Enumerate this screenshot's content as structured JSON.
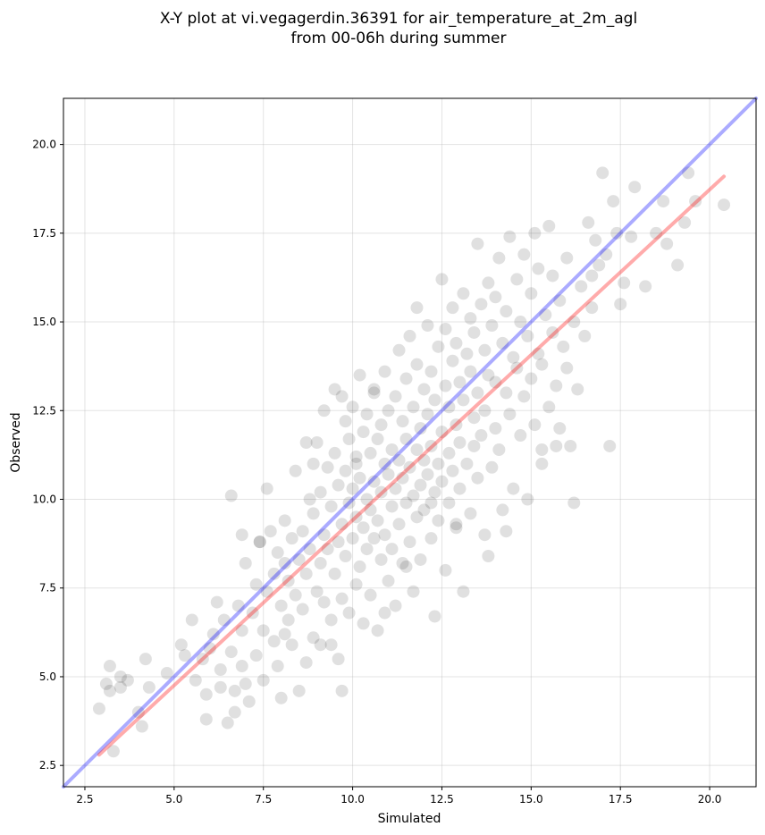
{
  "chart_data": {
    "type": "scatter",
    "title_line1": "X-Y plot at vi.vegagerdin.36391 for air_temperature_at_2m_agl",
    "title_line2": "from 00-06h during summer",
    "xlabel": "Simulated",
    "ylabel": "Observed",
    "xlim": [
      1.9,
      21.3
    ],
    "ylim": [
      1.9,
      21.3
    ],
    "xticks": [
      2.5,
      5.0,
      7.5,
      10.0,
      12.5,
      15.0,
      17.5,
      20.0
    ],
    "yticks": [
      2.5,
      5.0,
      7.5,
      10.0,
      12.5,
      15.0,
      17.5,
      20.0
    ],
    "xtick_labels": [
      "2.5",
      "5.0",
      "7.5",
      "10.0",
      "12.5",
      "15.0",
      "17.5",
      "20.0"
    ],
    "ytick_labels": [
      "2.5",
      "5.0",
      "7.5",
      "10.0",
      "12.5",
      "15.0",
      "17.5",
      "20.0"
    ],
    "grid": true,
    "point_color": "#000000",
    "point_alpha": 0.12,
    "identity_line": {
      "color": "#0000ff",
      "alpha": 0.33,
      "x": [
        1.9,
        21.3
      ],
      "y": [
        1.9,
        21.3
      ]
    },
    "fit_line": {
      "color": "#ff0000",
      "alpha": 0.33,
      "x": [
        2.9,
        20.4
      ],
      "y": [
        2.8,
        19.1
      ]
    },
    "points": [
      [
        2.9,
        4.1
      ],
      [
        3.1,
        4.8
      ],
      [
        3.2,
        5.3
      ],
      [
        3.2,
        4.6
      ],
      [
        3.3,
        2.9
      ],
      [
        3.5,
        4.7
      ],
      [
        3.5,
        5.0
      ],
      [
        3.7,
        4.9
      ],
      [
        4.0,
        4.0
      ],
      [
        4.1,
        3.6
      ],
      [
        4.2,
        5.5
      ],
      [
        4.3,
        4.7
      ],
      [
        4.8,
        5.1
      ],
      [
        5.2,
        5.9
      ],
      [
        5.3,
        5.6
      ],
      [
        5.5,
        6.6
      ],
      [
        5.6,
        4.9
      ],
      [
        5.8,
        5.5
      ],
      [
        5.9,
        4.5
      ],
      [
        5.9,
        3.8
      ],
      [
        6.0,
        5.8
      ],
      [
        6.1,
        6.2
      ],
      [
        6.2,
        7.1
      ],
      [
        6.3,
        5.2
      ],
      [
        6.3,
        4.7
      ],
      [
        6.4,
        6.6
      ],
      [
        6.5,
        3.7
      ],
      [
        6.6,
        5.7
      ],
      [
        6.7,
        4.0
      ],
      [
        6.7,
        4.6
      ],
      [
        6.8,
        7.0
      ],
      [
        6.9,
        5.3
      ],
      [
        6.9,
        6.3
      ],
      [
        7.0,
        8.2
      ],
      [
        7.0,
        4.8
      ],
      [
        7.1,
        4.3
      ],
      [
        7.2,
        6.8
      ],
      [
        7.3,
        7.6
      ],
      [
        7.3,
        5.6
      ],
      [
        7.4,
        8.8
      ],
      [
        7.5,
        6.3
      ],
      [
        7.5,
        4.9
      ],
      [
        7.6,
        7.4
      ],
      [
        7.6,
        10.3
      ],
      [
        7.7,
        9.1
      ],
      [
        7.8,
        6.0
      ],
      [
        7.8,
        7.9
      ],
      [
        7.9,
        5.3
      ],
      [
        7.9,
        8.5
      ],
      [
        8.0,
        4.4
      ],
      [
        8.0,
        7.0
      ],
      [
        8.1,
        8.2
      ],
      [
        8.1,
        9.4
      ],
      [
        8.2,
        6.6
      ],
      [
        8.2,
        7.7
      ],
      [
        8.3,
        5.9
      ],
      [
        8.3,
        8.9
      ],
      [
        8.4,
        10.8
      ],
      [
        8.4,
        7.3
      ],
      [
        8.5,
        8.3
      ],
      [
        8.5,
        4.6
      ],
      [
        8.6,
        6.9
      ],
      [
        8.6,
        9.1
      ],
      [
        8.7,
        7.9
      ],
      [
        8.7,
        5.4
      ],
      [
        8.8,
        8.6
      ],
      [
        8.8,
        10.0
      ],
      [
        8.9,
        6.1
      ],
      [
        8.9,
        9.6
      ],
      [
        9.0,
        7.4
      ],
      [
        9.0,
        11.6
      ],
      [
        9.1,
        8.2
      ],
      [
        9.1,
        10.2
      ],
      [
        9.1,
        5.9
      ],
      [
        9.2,
        9.0
      ],
      [
        9.2,
        7.1
      ],
      [
        9.3,
        10.9
      ],
      [
        9.3,
        8.6
      ],
      [
        9.4,
        6.6
      ],
      [
        9.4,
        9.8
      ],
      [
        9.5,
        13.1
      ],
      [
        9.5,
        7.9
      ],
      [
        9.5,
        11.3
      ],
      [
        9.6,
        8.8
      ],
      [
        9.6,
        5.5
      ],
      [
        9.6,
        10.4
      ],
      [
        9.7,
        9.3
      ],
      [
        9.7,
        7.2
      ],
      [
        9.7,
        4.6
      ],
      [
        9.8,
        12.2
      ],
      [
        9.8,
        10.8
      ],
      [
        9.8,
        8.4
      ],
      [
        9.9,
        9.9
      ],
      [
        9.9,
        6.8
      ],
      [
        9.9,
        11.7
      ],
      [
        10.0,
        10.3
      ],
      [
        10.0,
        8.9
      ],
      [
        10.0,
        12.6
      ],
      [
        10.1,
        7.6
      ],
      [
        10.1,
        9.5
      ],
      [
        10.1,
        11.0
      ],
      [
        10.2,
        13.5
      ],
      [
        10.2,
        8.1
      ],
      [
        10.2,
        10.6
      ],
      [
        10.3,
        9.2
      ],
      [
        10.3,
        6.5
      ],
      [
        10.3,
        11.9
      ],
      [
        10.4,
        10.0
      ],
      [
        10.4,
        8.6
      ],
      [
        10.4,
        12.4
      ],
      [
        10.5,
        9.7
      ],
      [
        10.5,
        11.3
      ],
      [
        10.5,
        7.3
      ],
      [
        10.6,
        10.5
      ],
      [
        10.6,
        8.9
      ],
      [
        10.6,
        13.0
      ],
      [
        10.7,
        9.4
      ],
      [
        10.7,
        11.7
      ],
      [
        10.7,
        6.3
      ],
      [
        10.8,
        10.2
      ],
      [
        10.8,
        12.1
      ],
      [
        10.8,
        8.3
      ],
      [
        10.9,
        11.0
      ],
      [
        10.9,
        9.0
      ],
      [
        10.9,
        13.6
      ],
      [
        11.0,
        10.7
      ],
      [
        11.0,
        7.7
      ],
      [
        11.0,
        12.5
      ],
      [
        11.1,
        9.8
      ],
      [
        11.1,
        11.4
      ],
      [
        11.1,
        8.6
      ],
      [
        11.2,
        10.3
      ],
      [
        11.2,
        12.9
      ],
      [
        11.2,
        7.0
      ],
      [
        11.3,
        11.1
      ],
      [
        11.3,
        9.3
      ],
      [
        11.3,
        14.2
      ],
      [
        11.4,
        10.6
      ],
      [
        11.4,
        8.2
      ],
      [
        11.4,
        12.2
      ],
      [
        11.5,
        9.9
      ],
      [
        11.5,
        11.7
      ],
      [
        11.5,
        13.4
      ],
      [
        11.6,
        10.9
      ],
      [
        11.6,
        8.8
      ],
      [
        11.6,
        14.6
      ],
      [
        11.7,
        10.1
      ],
      [
        11.7,
        12.6
      ],
      [
        11.7,
        7.4
      ],
      [
        11.8,
        11.4
      ],
      [
        11.8,
        9.5
      ],
      [
        11.8,
        13.8
      ],
      [
        11.9,
        10.4
      ],
      [
        11.9,
        12.0
      ],
      [
        11.9,
        8.3
      ],
      [
        12.0,
        11.1
      ],
      [
        12.0,
        13.1
      ],
      [
        12.0,
        9.7
      ],
      [
        12.1,
        14.9
      ],
      [
        12.1,
        10.7
      ],
      [
        12.1,
        12.4
      ],
      [
        12.2,
        8.9
      ],
      [
        12.2,
        11.5
      ],
      [
        12.2,
        13.6
      ],
      [
        12.3,
        10.2
      ],
      [
        12.3,
        6.7
      ],
      [
        12.3,
        12.8
      ],
      [
        12.4,
        11.0
      ],
      [
        12.4,
        14.3
      ],
      [
        12.4,
        9.4
      ],
      [
        12.5,
        16.2
      ],
      [
        12.5,
        11.9
      ],
      [
        12.5,
        10.5
      ],
      [
        12.6,
        13.2
      ],
      [
        12.6,
        8.0
      ],
      [
        12.6,
        14.8
      ],
      [
        12.7,
        11.3
      ],
      [
        12.7,
        9.9
      ],
      [
        12.7,
        12.6
      ],
      [
        12.8,
        13.9
      ],
      [
        12.8,
        10.8
      ],
      [
        12.8,
        15.4
      ],
      [
        12.9,
        12.1
      ],
      [
        12.9,
        9.2
      ],
      [
        12.9,
        14.4
      ],
      [
        13.0,
        11.6
      ],
      [
        13.0,
        13.3
      ],
      [
        13.0,
        10.3
      ],
      [
        13.1,
        7.4
      ],
      [
        13.1,
        15.8
      ],
      [
        13.1,
        12.8
      ],
      [
        13.2,
        14.1
      ],
      [
        13.2,
        11.0
      ],
      [
        13.3,
        13.6
      ],
      [
        13.3,
        9.6
      ],
      [
        13.3,
        15.1
      ],
      [
        13.4,
        12.3
      ],
      [
        13.4,
        14.7
      ],
      [
        13.5,
        10.6
      ],
      [
        13.5,
        13.0
      ],
      [
        13.5,
        17.2
      ],
      [
        13.6,
        15.5
      ],
      [
        13.6,
        11.8
      ],
      [
        13.7,
        14.2
      ],
      [
        13.7,
        9.0
      ],
      [
        13.7,
        12.5
      ],
      [
        13.8,
        16.1
      ],
      [
        13.8,
        13.5
      ],
      [
        13.9,
        10.9
      ],
      [
        13.9,
        14.9
      ],
      [
        14.0,
        12.0
      ],
      [
        14.0,
        15.7
      ],
      [
        14.0,
        13.3
      ],
      [
        14.1,
        16.8
      ],
      [
        14.1,
        11.4
      ],
      [
        14.2,
        14.4
      ],
      [
        14.2,
        9.7
      ],
      [
        14.3,
        13.0
      ],
      [
        14.3,
        15.3
      ],
      [
        14.4,
        17.4
      ],
      [
        14.4,
        12.4
      ],
      [
        14.5,
        14.0
      ],
      [
        14.5,
        10.3
      ],
      [
        14.6,
        16.2
      ],
      [
        14.6,
        13.7
      ],
      [
        14.7,
        11.8
      ],
      [
        14.7,
        15.0
      ],
      [
        14.8,
        16.9
      ],
      [
        14.8,
        12.9
      ],
      [
        14.9,
        14.6
      ],
      [
        14.9,
        10.0
      ],
      [
        15.0,
        15.8
      ],
      [
        15.0,
        13.4
      ],
      [
        15.1,
        17.5
      ],
      [
        15.1,
        12.1
      ],
      [
        15.2,
        14.1
      ],
      [
        15.2,
        16.5
      ],
      [
        15.3,
        11.0
      ],
      [
        15.3,
        13.8
      ],
      [
        15.4,
        15.2
      ],
      [
        15.5,
        17.7
      ],
      [
        15.5,
        12.6
      ],
      [
        15.6,
        14.7
      ],
      [
        15.6,
        16.3
      ],
      [
        15.7,
        11.5
      ],
      [
        15.7,
        13.2
      ],
      [
        15.8,
        15.6
      ],
      [
        15.8,
        12.0
      ],
      [
        15.9,
        14.3
      ],
      [
        16.0,
        16.8
      ],
      [
        16.0,
        13.7
      ],
      [
        16.1,
        11.5
      ],
      [
        16.2,
        15.0
      ],
      [
        16.2,
        9.9
      ],
      [
        16.3,
        13.1
      ],
      [
        16.4,
        16.0
      ],
      [
        16.5,
        14.6
      ],
      [
        16.6,
        17.8
      ],
      [
        16.7,
        15.4
      ],
      [
        16.8,
        17.3
      ],
      [
        16.9,
        16.6
      ],
      [
        17.0,
        19.2
      ],
      [
        17.1,
        16.9
      ],
      [
        17.2,
        11.5
      ],
      [
        17.3,
        18.4
      ],
      [
        17.4,
        17.5
      ],
      [
        17.5,
        15.5
      ],
      [
        17.6,
        16.1
      ],
      [
        17.8,
        17.4
      ],
      [
        17.9,
        18.8
      ],
      [
        18.2,
        16.0
      ],
      [
        18.5,
        17.5
      ],
      [
        18.7,
        18.4
      ],
      [
        18.8,
        17.2
      ],
      [
        19.1,
        16.6
      ],
      [
        19.3,
        17.8
      ],
      [
        19.4,
        19.2
      ],
      [
        19.6,
        18.4
      ],
      [
        20.4,
        18.3
      ],
      [
        8.7,
        11.6
      ],
      [
        9.2,
        12.5
      ],
      [
        10.6,
        13.1
      ],
      [
        11.8,
        15.4
      ],
      [
        7.4,
        8.8
      ],
      [
        6.9,
        9.0
      ],
      [
        8.1,
        6.2
      ],
      [
        9.4,
        5.9
      ],
      [
        10.9,
        6.8
      ],
      [
        12.9,
        9.3
      ],
      [
        13.8,
        8.4
      ],
      [
        14.3,
        9.1
      ],
      [
        15.3,
        11.4
      ],
      [
        16.7,
        16.3
      ],
      [
        6.6,
        10.1
      ],
      [
        8.9,
        11.0
      ],
      [
        10.1,
        11.2
      ],
      [
        11.5,
        8.1
      ],
      [
        12.2,
        9.9
      ],
      [
        13.4,
        11.5
      ],
      [
        9.7,
        12.9
      ]
    ]
  }
}
